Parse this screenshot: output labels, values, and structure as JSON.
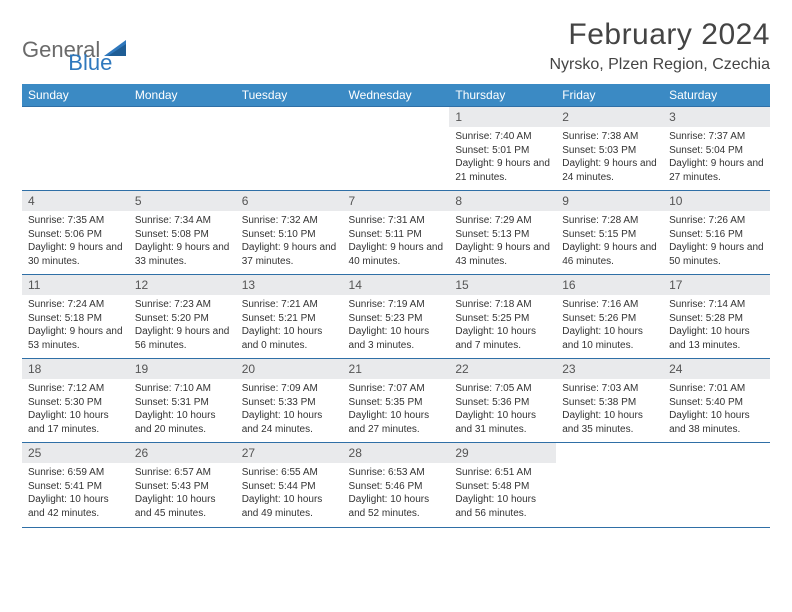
{
  "brand": {
    "part1": "General",
    "part2": "Blue"
  },
  "title": "February 2024",
  "location": "Nyrsko, Plzen Region, Czechia",
  "colors": {
    "header_bg": "#3b8ac4",
    "header_text": "#ffffff",
    "rule": "#2f6fa6",
    "daynum_bg": "#e9eaec",
    "logo_accent": "#2f78bd",
    "logo_gray": "#6a6a6a",
    "body_text": "#333333"
  },
  "dow": [
    "Sunday",
    "Monday",
    "Tuesday",
    "Wednesday",
    "Thursday",
    "Friday",
    "Saturday"
  ],
  "weeks": [
    [
      null,
      null,
      null,
      null,
      {
        "n": "1",
        "sr": "7:40 AM",
        "ss": "5:01 PM",
        "dl": "9 hours and 21 minutes."
      },
      {
        "n": "2",
        "sr": "7:38 AM",
        "ss": "5:03 PM",
        "dl": "9 hours and 24 minutes."
      },
      {
        "n": "3",
        "sr": "7:37 AM",
        "ss": "5:04 PM",
        "dl": "9 hours and 27 minutes."
      }
    ],
    [
      {
        "n": "4",
        "sr": "7:35 AM",
        "ss": "5:06 PM",
        "dl": "9 hours and 30 minutes."
      },
      {
        "n": "5",
        "sr": "7:34 AM",
        "ss": "5:08 PM",
        "dl": "9 hours and 33 minutes."
      },
      {
        "n": "6",
        "sr": "7:32 AM",
        "ss": "5:10 PM",
        "dl": "9 hours and 37 minutes."
      },
      {
        "n": "7",
        "sr": "7:31 AM",
        "ss": "5:11 PM",
        "dl": "9 hours and 40 minutes."
      },
      {
        "n": "8",
        "sr": "7:29 AM",
        "ss": "5:13 PM",
        "dl": "9 hours and 43 minutes."
      },
      {
        "n": "9",
        "sr": "7:28 AM",
        "ss": "5:15 PM",
        "dl": "9 hours and 46 minutes."
      },
      {
        "n": "10",
        "sr": "7:26 AM",
        "ss": "5:16 PM",
        "dl": "9 hours and 50 minutes."
      }
    ],
    [
      {
        "n": "11",
        "sr": "7:24 AM",
        "ss": "5:18 PM",
        "dl": "9 hours and 53 minutes."
      },
      {
        "n": "12",
        "sr": "7:23 AM",
        "ss": "5:20 PM",
        "dl": "9 hours and 56 minutes."
      },
      {
        "n": "13",
        "sr": "7:21 AM",
        "ss": "5:21 PM",
        "dl": "10 hours and 0 minutes."
      },
      {
        "n": "14",
        "sr": "7:19 AM",
        "ss": "5:23 PM",
        "dl": "10 hours and 3 minutes."
      },
      {
        "n": "15",
        "sr": "7:18 AM",
        "ss": "5:25 PM",
        "dl": "10 hours and 7 minutes."
      },
      {
        "n": "16",
        "sr": "7:16 AM",
        "ss": "5:26 PM",
        "dl": "10 hours and 10 minutes."
      },
      {
        "n": "17",
        "sr": "7:14 AM",
        "ss": "5:28 PM",
        "dl": "10 hours and 13 minutes."
      }
    ],
    [
      {
        "n": "18",
        "sr": "7:12 AM",
        "ss": "5:30 PM",
        "dl": "10 hours and 17 minutes."
      },
      {
        "n": "19",
        "sr": "7:10 AM",
        "ss": "5:31 PM",
        "dl": "10 hours and 20 minutes."
      },
      {
        "n": "20",
        "sr": "7:09 AM",
        "ss": "5:33 PM",
        "dl": "10 hours and 24 minutes."
      },
      {
        "n": "21",
        "sr": "7:07 AM",
        "ss": "5:35 PM",
        "dl": "10 hours and 27 minutes."
      },
      {
        "n": "22",
        "sr": "7:05 AM",
        "ss": "5:36 PM",
        "dl": "10 hours and 31 minutes."
      },
      {
        "n": "23",
        "sr": "7:03 AM",
        "ss": "5:38 PM",
        "dl": "10 hours and 35 minutes."
      },
      {
        "n": "24",
        "sr": "7:01 AM",
        "ss": "5:40 PM",
        "dl": "10 hours and 38 minutes."
      }
    ],
    [
      {
        "n": "25",
        "sr": "6:59 AM",
        "ss": "5:41 PM",
        "dl": "10 hours and 42 minutes."
      },
      {
        "n": "26",
        "sr": "6:57 AM",
        "ss": "5:43 PM",
        "dl": "10 hours and 45 minutes."
      },
      {
        "n": "27",
        "sr": "6:55 AM",
        "ss": "5:44 PM",
        "dl": "10 hours and 49 minutes."
      },
      {
        "n": "28",
        "sr": "6:53 AM",
        "ss": "5:46 PM",
        "dl": "10 hours and 52 minutes."
      },
      {
        "n": "29",
        "sr": "6:51 AM",
        "ss": "5:48 PM",
        "dl": "10 hours and 56 minutes."
      },
      null,
      null
    ]
  ],
  "labels": {
    "sunrise": "Sunrise: ",
    "sunset": "Sunset: ",
    "daylight": "Daylight: "
  }
}
